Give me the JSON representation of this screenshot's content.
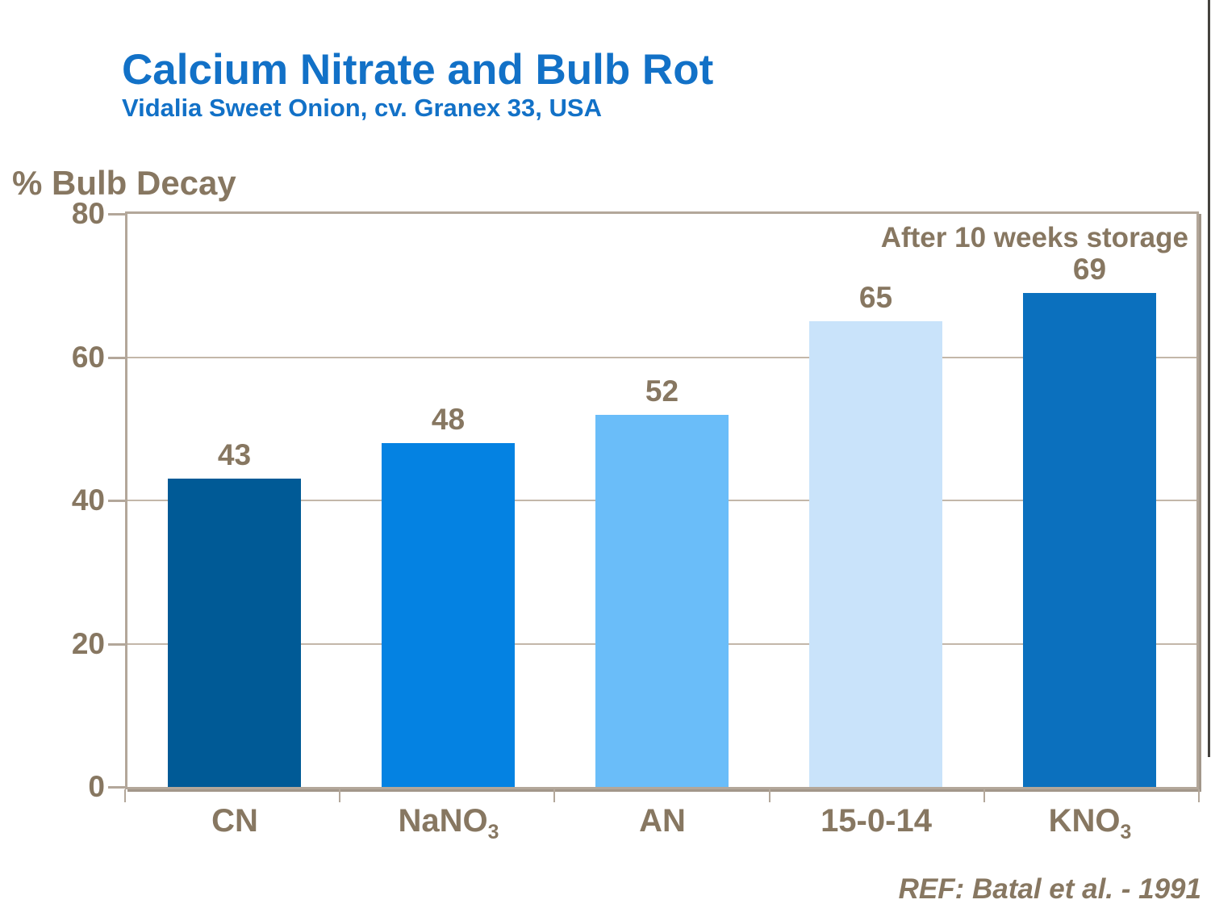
{
  "header": {
    "title": "Calcium Nitrate and Bulb Rot",
    "subtitle": "Vidalia Sweet Onion, cv. Granex 33, USA"
  },
  "footer": {
    "reference": "REF: Batal et al. - 1991"
  },
  "chart_data": {
    "type": "bar",
    "title": "Calcium Nitrate and Bulb Rot",
    "subtitle": "Vidalia Sweet Onion, cv. Granex 33, USA",
    "ylabel": "% Bulb Decay",
    "xlabel": "",
    "annotation": "After 10 weeks storage",
    "reference": "REF: Batal et al. - 1991",
    "categories": [
      "CN",
      "NaNO3",
      "AN",
      "15-0-14",
      "KNO3"
    ],
    "category_display": [
      {
        "base": "CN",
        "sub": ""
      },
      {
        "base": "NaNO",
        "sub": "3"
      },
      {
        "base": "AN",
        "sub": ""
      },
      {
        "base": "15-0-14",
        "sub": ""
      },
      {
        "base": "KNO",
        "sub": "3"
      }
    ],
    "values": [
      43,
      48,
      52,
      65,
      69
    ],
    "bar_colors": [
      "#005a96",
      "#0482e2",
      "#6abdf9",
      "#c9e3fa",
      "#0b70be"
    ],
    "ylim": [
      0,
      80
    ],
    "yticks": [
      0,
      20,
      40,
      60,
      80
    ],
    "gridlines_at": [
      20,
      40,
      60
    ],
    "legend_position": "none",
    "plot_border": true
  },
  "colors": {
    "title_blue": "#1271c7",
    "text_taupe": "#877761",
    "frame": "#b3a79a",
    "gridline": "#c3b7a9",
    "frame_shadow": "#a2978a",
    "edge_line": "#45423e"
  }
}
